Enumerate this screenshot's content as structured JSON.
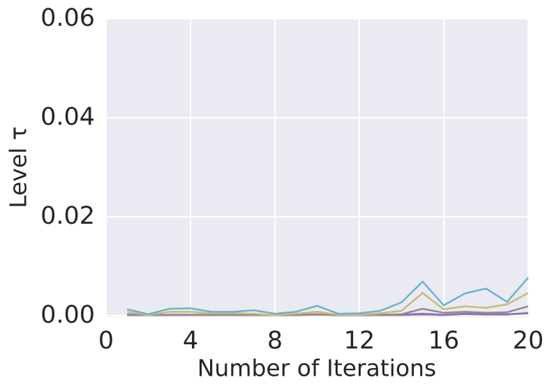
{
  "chart_data": {
    "type": "line",
    "xlabel": "Number of Iterations",
    "ylabel": "Level τ",
    "x": [
      1,
      2,
      3,
      4,
      5,
      6,
      7,
      8,
      9,
      10,
      11,
      12,
      13,
      14,
      15,
      16,
      17,
      18,
      19,
      20
    ],
    "xlim": [
      0,
      20
    ],
    "xticks": [
      0,
      4,
      8,
      12,
      16,
      20
    ],
    "ylim": [
      0,
      0.06
    ],
    "yticks": [
      {
        "value": 0,
        "label": "0.00"
      },
      {
        "value": 0.02,
        "label": "0.02"
      },
      {
        "value": 0.04,
        "label": "0.04"
      },
      {
        "value": 0.06,
        "label": "0.06"
      }
    ],
    "grid": true,
    "series": [
      {
        "color": "#da8bc3",
        "values": [
          0.0001,
          0.0001,
          0.0001,
          0.0001,
          0.0001,
          0.0001,
          0.0001,
          0.0001,
          0.0001,
          0.0002,
          0.0001,
          0.0001,
          0.0001,
          0.0001,
          0.0002,
          0.0001,
          0.0003,
          0.0002,
          0.0002,
          0.0006
        ]
      },
      {
        "color": "#8172b3",
        "values": [
          0.0002,
          0.0001,
          0.0002,
          0.0002,
          0.0002,
          0.0002,
          0.0002,
          0.0001,
          0.0002,
          0.0003,
          0.0001,
          0.0001,
          0.0002,
          0.0002,
          0.0004,
          0.0002,
          0.0004,
          0.0003,
          0.0003,
          0.0005
        ]
      },
      {
        "color": "#8c8c8c",
        "values": [
          0.0003,
          0.0001,
          0.0002,
          0.0002,
          0.0002,
          0.0002,
          0.0002,
          0.0001,
          0.0002,
          0.0003,
          0.0001,
          0.0001,
          0.0002,
          0.0003,
          0.0014,
          0.0006,
          0.0008,
          0.0006,
          0.0007,
          0.0019
        ]
      },
      {
        "color": "#ccb974",
        "values": [
          0.0008,
          0.0001,
          0.0008,
          0.0008,
          0.0005,
          0.0005,
          0.0004,
          0.0001,
          0.0004,
          0.0008,
          0.0002,
          0.0002,
          0.0005,
          0.001,
          0.0046,
          0.0013,
          0.0019,
          0.0016,
          0.0023,
          0.0046
        ]
      },
      {
        "color": "#64b5cd",
        "values": [
          0.0013,
          0.0003,
          0.0014,
          0.0015,
          0.0008,
          0.0008,
          0.0011,
          0.0004,
          0.0008,
          0.002,
          0.0004,
          0.0005,
          0.001,
          0.0027,
          0.0069,
          0.0021,
          0.0045,
          0.0055,
          0.0028,
          0.0077
        ]
      }
    ]
  }
}
